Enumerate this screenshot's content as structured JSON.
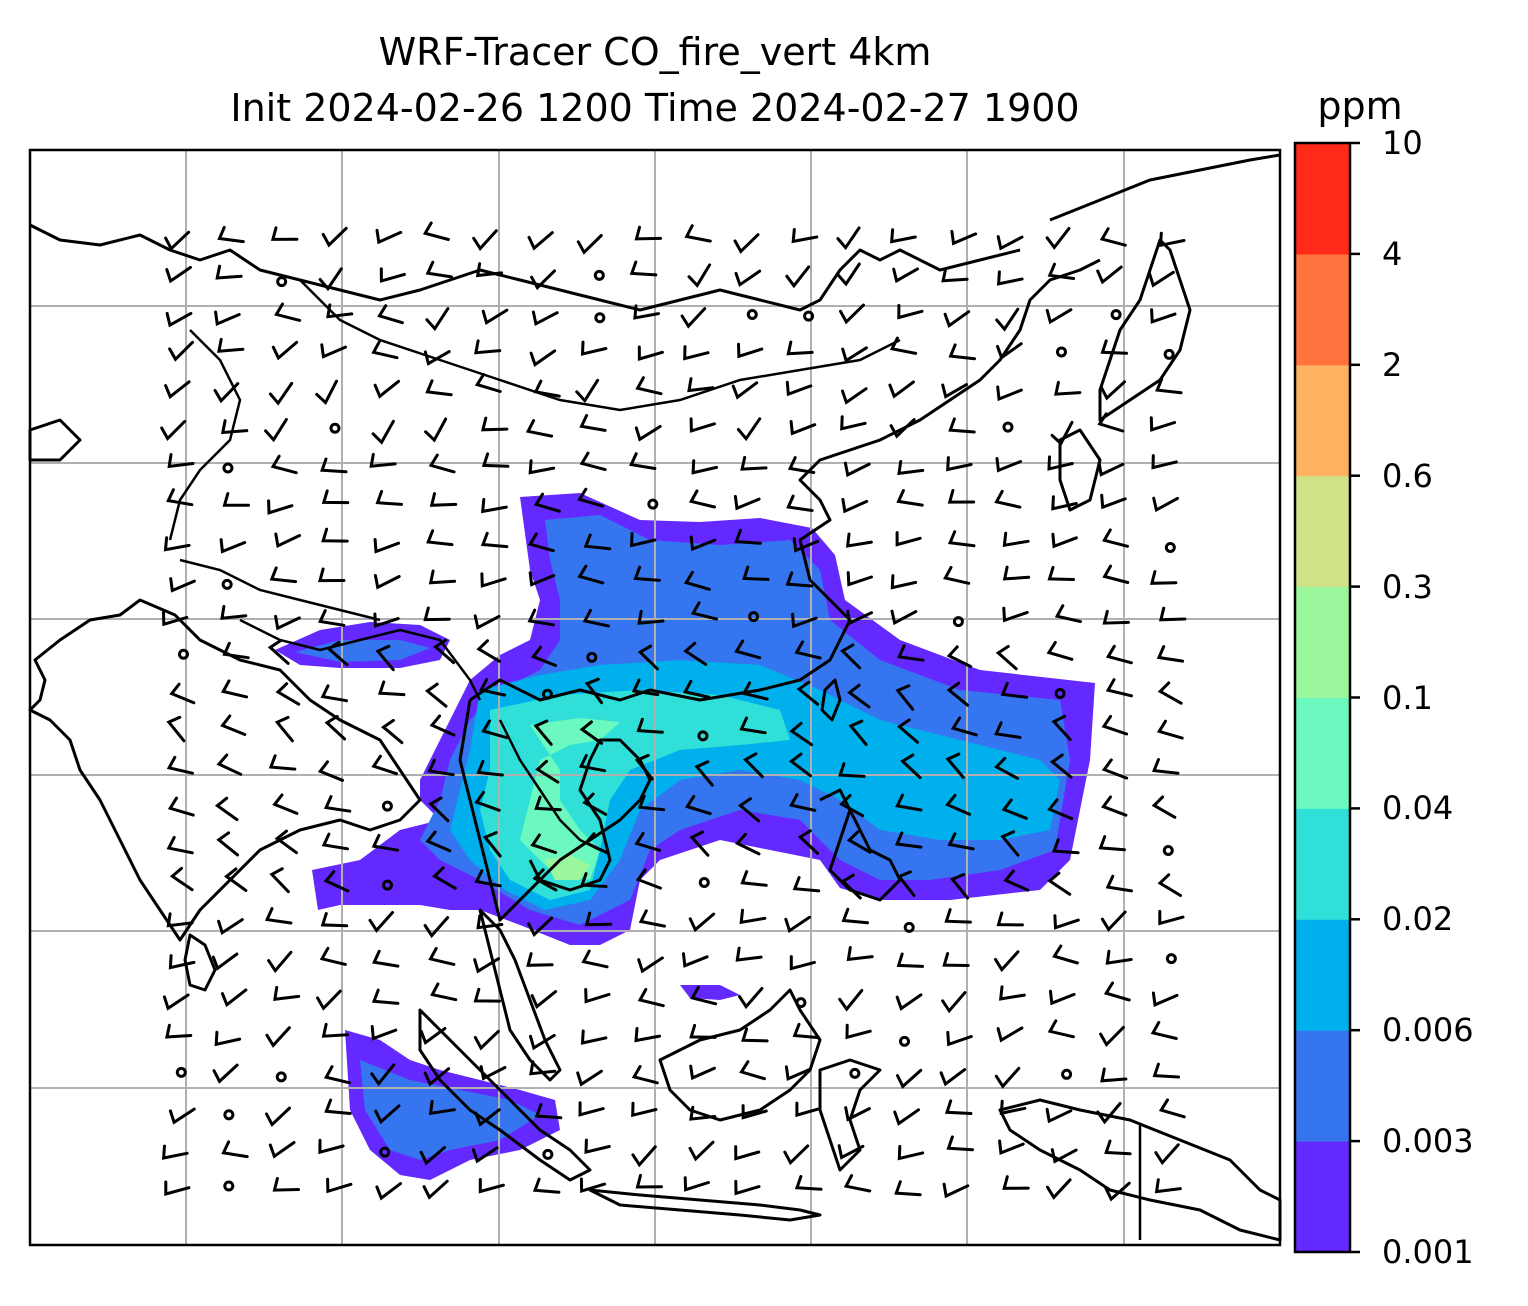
{
  "title": {
    "line1": "WRF-Tracer CO_fire_vert 4km",
    "line2": "Init 2024-02-26 1200 Time 2024-02-27 1900"
  },
  "colorbar": {
    "unit": "ppm",
    "levels": [
      "0.001",
      "0.003",
      "0.006",
      "0.02",
      "0.04",
      "0.1",
      "0.3",
      "0.6",
      "2",
      "4",
      "10"
    ],
    "colors": [
      "#6429fe",
      "#3575f0",
      "#00b0ec",
      "#30e0d8",
      "#6cf9c0",
      "#9af79c",
      "#cfe288",
      "#feb160",
      "#ff733e",
      "#ff2a17"
    ]
  },
  "map": {
    "projection": "lat-lon with gridlines",
    "grid": true,
    "coastlines": true,
    "borders": true,
    "overlay": "wind barbs",
    "field": "CO fire tracer concentration"
  }
}
